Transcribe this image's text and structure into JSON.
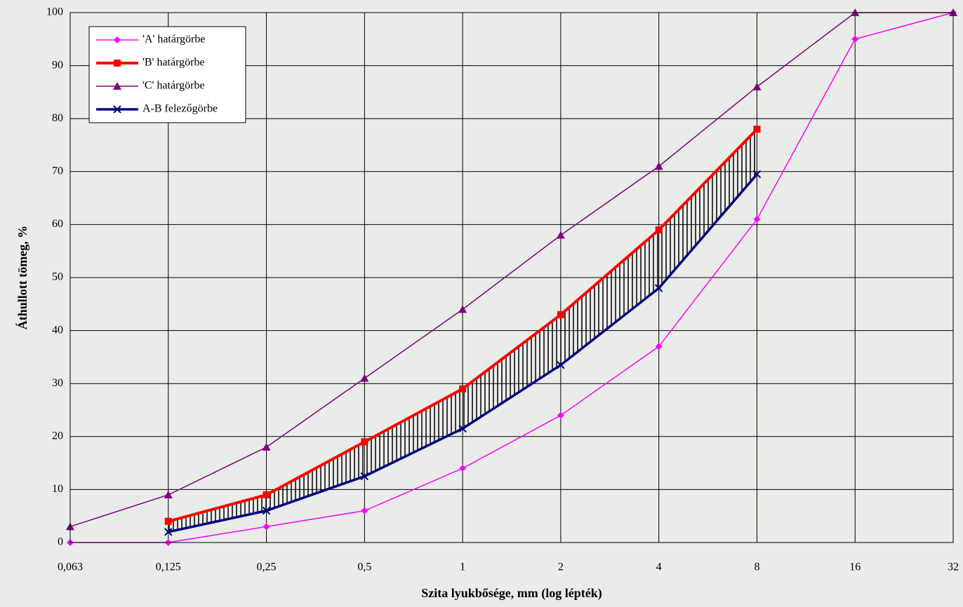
{
  "chart_data": {
    "type": "line",
    "x_label": "Szita lyukbősége, mm (log lépték)",
    "y_label": "Áthullott tömeg, %",
    "categories": [
      "0,063",
      "0,125",
      "0,25",
      "0,5",
      "1",
      "2",
      "4",
      "8",
      "16",
      "32"
    ],
    "series": [
      {
        "name": "'A' határgörbe",
        "color": "#ff00ff",
        "marker": "diamond",
        "values": [
          0,
          0,
          3,
          6,
          14,
          24,
          37,
          61,
          95,
          100
        ]
      },
      {
        "name": "'B' határgörbe",
        "color": "#ff0000",
        "marker": "square",
        "values": [
          null,
          4,
          9,
          19,
          29,
          43,
          59,
          78,
          null,
          null
        ]
      },
      {
        "name": "'C' határgörbe",
        "color": "#800080",
        "marker": "triangle",
        "values": [
          3,
          9,
          18,
          31,
          44,
          58,
          71,
          86,
          100,
          100
        ]
      },
      {
        "name": "A-B felezőgörbe",
        "color": "#000080",
        "marker": "x",
        "values": [
          null,
          2,
          6,
          12.5,
          21.5,
          33.5,
          48,
          69.5,
          null,
          null
        ]
      }
    ],
    "ylim": [
      0,
      100
    ],
    "yticks": [
      0,
      10,
      20,
      30,
      40,
      50,
      60,
      70,
      80,
      90,
      100
    ],
    "grid": true,
    "legend": "upper left"
  }
}
